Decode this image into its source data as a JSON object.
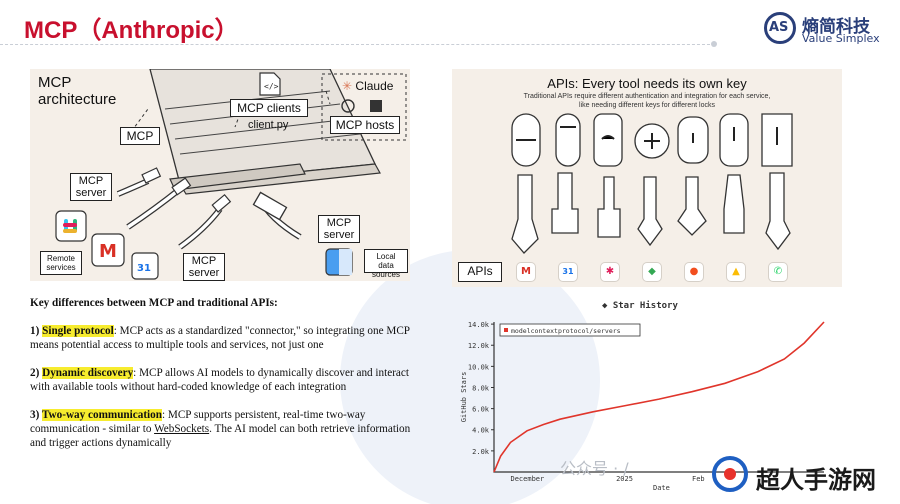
{
  "slide": {
    "title": "MCP（Anthropic）",
    "logo": {
      "cn": "熵简科技",
      "en": "Value Simplex",
      "mark": "AS"
    }
  },
  "architecture": {
    "heading_line1": "MCP",
    "heading_line2": "architecture",
    "mcp_box": "MCP",
    "clients_box": "MCP clients",
    "clients_file": "client.py",
    "hosts_claude": "Claude",
    "hosts_box": "MCP hosts",
    "server_left_line1": "MCP",
    "server_left_line2": "server",
    "server_bottom_line1": "MCP",
    "server_bottom_line2": "server",
    "server_right_line1": "MCP",
    "server_right_line2": "server",
    "remote_line1": "Remote",
    "remote_line2": "services",
    "local_line1": "Local data",
    "local_line2": "sources"
  },
  "keys_panel": {
    "title": "APIs: Every tool needs its own key",
    "subtitle_line1": "Traditional APIs require different authentication and integration for each service,",
    "subtitle_line2": "like needing different keys for different locks",
    "apis_label": "APIs",
    "apps": [
      {
        "icon": "gmail-icon",
        "glyph": "M",
        "color": "#d93025"
      },
      {
        "icon": "calendar-icon",
        "glyph": "31",
        "color": "#1a73e8"
      },
      {
        "icon": "slack-icon",
        "glyph": "✱",
        "color": "#e01e5a"
      },
      {
        "icon": "maps-icon",
        "glyph": "◆",
        "color": "#34a853"
      },
      {
        "icon": "figma-icon",
        "glyph": "●",
        "color": "#f24e1e"
      },
      {
        "icon": "drive-icon",
        "glyph": "▲",
        "color": "#fbbc04"
      },
      {
        "icon": "whatsapp-icon",
        "glyph": "✆",
        "color": "#25d366"
      }
    ]
  },
  "text_block": {
    "heading": "Key differences between MCP and traditional APIs:",
    "p1_num": "1) ",
    "p1_hl": "Single protocol",
    "p1_body": ": MCP acts as a standardized \"connector,\" so integrating one MCP means potential access to multiple tools and services, not just one",
    "p2_num": "2) ",
    "p2_hl": "Dynamic discovery",
    "p2_body": ": MCP allows AI models to dynamically discover and interact with available tools without hard-coded knowledge of each integration",
    "p3_num": "3) ",
    "p3_hl": "Two-way communication",
    "p3_body1": ": MCP supports persistent, real-time two-way communication - similar to ",
    "p3_link": "WebSockets",
    "p3_body2": ". The AI model can both retrieve information and trigger actions dynamically"
  },
  "chart_data": {
    "type": "line",
    "title": "Star History",
    "xlabel": "Date",
    "ylabel": "GitHub Stars",
    "legend": "top-left",
    "series": [
      {
        "name": "modelcontextprotocol/servers",
        "color": "#e0352b",
        "x": [
          0,
          0.02,
          0.05,
          0.1,
          0.15,
          0.2,
          0.3,
          0.4,
          0.5,
          0.6,
          0.7,
          0.8,
          0.88,
          0.94,
          1.0
        ],
        "values": [
          0,
          1500,
          2800,
          3900,
          4500,
          5000,
          5700,
          6300,
          6900,
          7600,
          8400,
          9500,
          10700,
          12200,
          14200
        ]
      }
    ],
    "x_ticks": [
      "December",
      "2025",
      "Feb"
    ],
    "y_ticks": [
      "2.0k",
      "4.0k",
      "6.0k",
      "8.0k",
      "10.0k",
      "12.0k",
      "14.0k"
    ],
    "ylim": [
      0,
      14200
    ]
  },
  "watermarks": {
    "left": "公众号 · /",
    "right": "超人手游网"
  }
}
